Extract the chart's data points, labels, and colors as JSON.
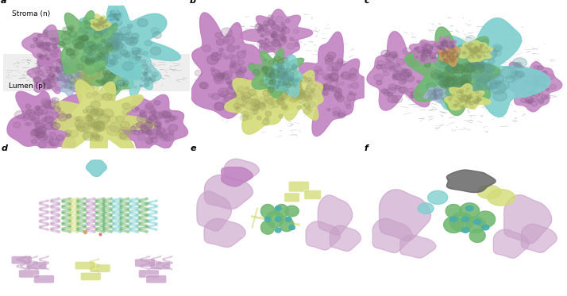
{
  "panels": [
    "a",
    "b",
    "c",
    "d",
    "e",
    "f"
  ],
  "panel_label_fontsize": 8,
  "panel_label_color": "#000000",
  "background_color": "#ffffff",
  "colors": {
    "cyan": "#7ecfcf",
    "green": "#70b870",
    "yellow_green": "#d4dc7a",
    "purple": "#c080c0",
    "light_purple": "#c8a0c8",
    "teal": "#4aadad",
    "gray_lipid": "#c8c8c8",
    "membrane_gray": "#e0e0e0",
    "orange": "#d4a060",
    "blue_light": "#a0b8d8",
    "dark_gray": "#606060"
  },
  "figsize": [
    7.14,
    3.73
  ],
  "dpi": 100
}
